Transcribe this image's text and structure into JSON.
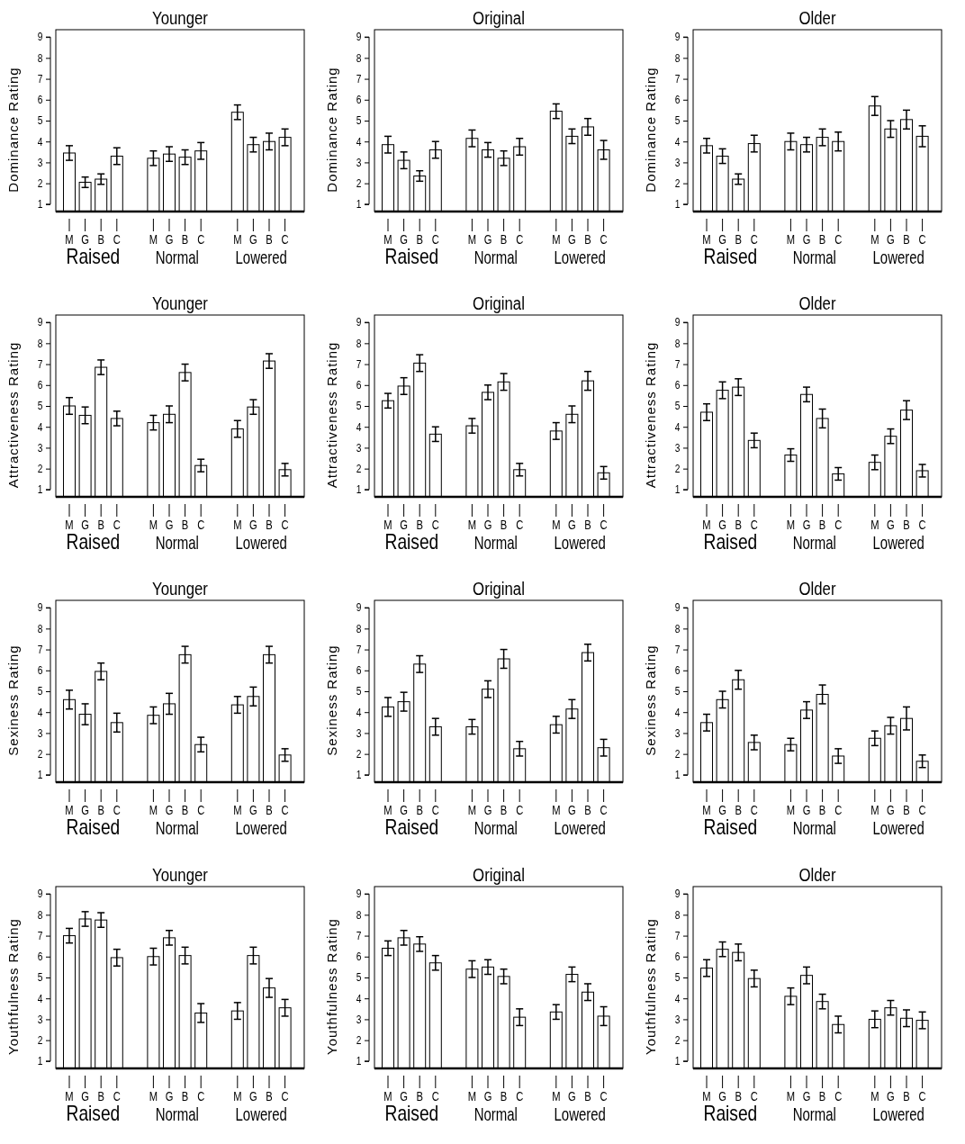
{
  "chart_data": [
    {
      "type": "bar",
      "title": "Younger",
      "ylabel": "Dominance Rating",
      "categories": [
        "M",
        "G",
        "B",
        "C",
        "M",
        "G",
        "B",
        "C",
        "M",
        "G",
        "B",
        "C"
      ],
      "annotations": [
        "Raised",
        "Normal",
        "Lowered"
      ],
      "color": "#ffffff",
      "ylim": [
        0.65,
        9.35
      ],
      "yticks": [
        1,
        2,
        3,
        4,
        5,
        6,
        7,
        8,
        9
      ],
      "values": [
        3.45,
        2.05,
        2.2,
        3.3,
        3.2,
        3.4,
        3.25,
        3.55,
        5.4,
        3.85,
        4.0,
        4.2
      ],
      "errors": [
        0.35,
        0.25,
        0.25,
        0.4,
        0.35,
        0.35,
        0.35,
        0.4,
        0.35,
        0.35,
        0.4,
        0.4
      ]
    },
    {
      "type": "bar",
      "title": "Original",
      "ylabel": "Dominance Rating",
      "categories": [
        "M",
        "G",
        "B",
        "C",
        "M",
        "G",
        "B",
        "C",
        "M",
        "G",
        "B",
        "C"
      ],
      "annotations": [
        "Raised",
        "Normal",
        "Lowered"
      ],
      "color": "#ffffff",
      "ylim": [
        0.65,
        9.35
      ],
      "yticks": [
        1,
        2,
        3,
        4,
        5,
        6,
        7,
        8,
        9
      ],
      "values": [
        3.85,
        3.1,
        2.35,
        3.6,
        4.15,
        3.6,
        3.2,
        3.75,
        5.45,
        4.25,
        4.7,
        3.6
      ],
      "errors": [
        0.4,
        0.4,
        0.25,
        0.4,
        0.4,
        0.35,
        0.35,
        0.4,
        0.35,
        0.35,
        0.4,
        0.45
      ]
    },
    {
      "type": "bar",
      "title": "Older",
      "ylabel": "Dominance Rating",
      "categories": [
        "M",
        "G",
        "B",
        "C",
        "M",
        "G",
        "B",
        "C",
        "M",
        "G",
        "B",
        "C"
      ],
      "annotations": [
        "Raised",
        "Normal",
        "Lowered"
      ],
      "color": "#ffffff",
      "ylim": [
        0.65,
        9.35
      ],
      "yticks": [
        1,
        2,
        3,
        4,
        5,
        6,
        7,
        8,
        9
      ],
      "values": [
        3.8,
        3.3,
        2.2,
        3.9,
        4.0,
        3.85,
        4.2,
        4.0,
        5.7,
        4.6,
        5.05,
        4.25
      ],
      "errors": [
        0.35,
        0.35,
        0.25,
        0.4,
        0.4,
        0.35,
        0.4,
        0.45,
        0.45,
        0.4,
        0.45,
        0.5
      ]
    },
    {
      "type": "bar",
      "title": "Younger",
      "ylabel": "Attractiveness Rating",
      "categories": [
        "M",
        "G",
        "B",
        "C",
        "M",
        "G",
        "B",
        "C",
        "M",
        "G",
        "B",
        "C"
      ],
      "annotations": [
        "Raised",
        "Normal",
        "Lowered"
      ],
      "color": "#ffffff",
      "ylim": [
        0.65,
        9.35
      ],
      "yticks": [
        1,
        2,
        3,
        4,
        5,
        6,
        7,
        8,
        9
      ],
      "values": [
        5.0,
        4.55,
        6.85,
        4.4,
        4.2,
        4.6,
        6.6,
        2.15,
        3.9,
        4.95,
        7.15,
        1.95
      ],
      "errors": [
        0.4,
        0.4,
        0.35,
        0.35,
        0.35,
        0.4,
        0.4,
        0.3,
        0.4,
        0.35,
        0.35,
        0.3
      ]
    },
    {
      "type": "bar",
      "title": "Original",
      "ylabel": "Attractiveness Rating",
      "categories": [
        "M",
        "G",
        "B",
        "C",
        "M",
        "G",
        "B",
        "C",
        "M",
        "G",
        "B",
        "C"
      ],
      "annotations": [
        "Raised",
        "Normal",
        "Lowered"
      ],
      "color": "#ffffff",
      "ylim": [
        0.65,
        9.35
      ],
      "yticks": [
        1,
        2,
        3,
        4,
        5,
        6,
        7,
        8,
        9
      ],
      "values": [
        5.25,
        5.95,
        7.05,
        3.65,
        4.05,
        5.65,
        6.15,
        1.95,
        3.8,
        4.6,
        6.2,
        1.8
      ],
      "errors": [
        0.35,
        0.4,
        0.4,
        0.35,
        0.35,
        0.35,
        0.4,
        0.3,
        0.4,
        0.4,
        0.45,
        0.3
      ]
    },
    {
      "type": "bar",
      "title": "Older",
      "ylabel": "Attractiveness Rating",
      "categories": [
        "M",
        "G",
        "B",
        "C",
        "M",
        "G",
        "B",
        "C",
        "M",
        "G",
        "B",
        "C"
      ],
      "annotations": [
        "Raised",
        "Normal",
        "Lowered"
      ],
      "color": "#ffffff",
      "ylim": [
        0.65,
        9.35
      ],
      "yticks": [
        1,
        2,
        3,
        4,
        5,
        6,
        7,
        8,
        9
      ],
      "values": [
        4.7,
        5.75,
        5.9,
        3.35,
        2.65,
        5.55,
        4.4,
        1.75,
        2.3,
        3.55,
        4.8,
        1.9
      ],
      "errors": [
        0.4,
        0.4,
        0.4,
        0.35,
        0.3,
        0.35,
        0.45,
        0.3,
        0.35,
        0.35,
        0.45,
        0.3
      ]
    },
    {
      "type": "bar",
      "title": "Younger",
      "ylabel": "Sexiness Rating",
      "categories": [
        "M",
        "G",
        "B",
        "C",
        "M",
        "G",
        "B",
        "C",
        "M",
        "G",
        "B",
        "C"
      ],
      "annotations": [
        "Raised",
        "Normal",
        "Lowered"
      ],
      "color": "#ffffff",
      "ylim": [
        0.65,
        9.35
      ],
      "yticks": [
        1,
        2,
        3,
        4,
        5,
        6,
        7,
        8,
        9
      ],
      "values": [
        4.6,
        3.9,
        5.95,
        3.5,
        3.85,
        4.4,
        6.75,
        2.45,
        4.35,
        4.75,
        6.75,
        1.95
      ],
      "errors": [
        0.45,
        0.5,
        0.4,
        0.45,
        0.4,
        0.5,
        0.4,
        0.35,
        0.4,
        0.45,
        0.4,
        0.3
      ]
    },
    {
      "type": "bar",
      "title": "Original",
      "ylabel": "Sexiness Rating",
      "categories": [
        "M",
        "G",
        "B",
        "C",
        "M",
        "G",
        "B",
        "C",
        "M",
        "G",
        "B",
        "C"
      ],
      "annotations": [
        "Raised",
        "Normal",
        "Lowered"
      ],
      "color": "#ffffff",
      "ylim": [
        0.65,
        9.35
      ],
      "yticks": [
        1,
        2,
        3,
        4,
        5,
        6,
        7,
        8,
        9
      ],
      "values": [
        4.25,
        4.5,
        6.3,
        3.3,
        3.3,
        5.1,
        6.55,
        2.25,
        3.4,
        4.15,
        6.85,
        2.3
      ],
      "errors": [
        0.45,
        0.45,
        0.4,
        0.4,
        0.35,
        0.4,
        0.45,
        0.35,
        0.4,
        0.45,
        0.4,
        0.4
      ]
    },
    {
      "type": "bar",
      "title": "Older",
      "ylabel": "Sexiness Rating",
      "categories": [
        "M",
        "G",
        "B",
        "C",
        "M",
        "G",
        "B",
        "C",
        "M",
        "G",
        "B",
        "C"
      ],
      "annotations": [
        "Raised",
        "Normal",
        "Lowered"
      ],
      "color": "#ffffff",
      "ylim": [
        0.65,
        9.35
      ],
      "yticks": [
        1,
        2,
        3,
        4,
        5,
        6,
        7,
        8,
        9
      ],
      "values": [
        3.5,
        4.6,
        5.55,
        2.55,
        2.45,
        4.1,
        4.85,
        1.9,
        2.75,
        3.35,
        3.7,
        1.65
      ],
      "errors": [
        0.4,
        0.4,
        0.45,
        0.35,
        0.3,
        0.4,
        0.45,
        0.35,
        0.35,
        0.4,
        0.55,
        0.3
      ]
    },
    {
      "type": "bar",
      "title": "Younger",
      "ylabel": "Youthfulness Rating",
      "categories": [
        "M",
        "G",
        "B",
        "C",
        "M",
        "G",
        "B",
        "C",
        "M",
        "G",
        "B",
        "C"
      ],
      "annotations": [
        "Raised",
        "Normal",
        "Lowered"
      ],
      "color": "#ffffff",
      "ylim": [
        0.65,
        9.35
      ],
      "yticks": [
        1,
        2,
        3,
        4,
        5,
        6,
        7,
        8,
        9
      ],
      "values": [
        7.0,
        7.8,
        7.75,
        5.95,
        6.0,
        6.9,
        6.05,
        3.3,
        3.4,
        6.05,
        4.5,
        3.55
      ],
      "errors": [
        0.35,
        0.35,
        0.35,
        0.4,
        0.4,
        0.35,
        0.4,
        0.45,
        0.4,
        0.4,
        0.45,
        0.4
      ]
    },
    {
      "type": "bar",
      "title": "Original",
      "ylabel": "Youthfulness Rating",
      "categories": [
        "M",
        "G",
        "B",
        "C",
        "M",
        "G",
        "B",
        "C",
        "M",
        "G",
        "B",
        "C"
      ],
      "annotations": [
        "Raised",
        "Normal",
        "Lowered"
      ],
      "color": "#ffffff",
      "ylim": [
        0.65,
        9.35
      ],
      "yticks": [
        1,
        2,
        3,
        4,
        5,
        6,
        7,
        8,
        9
      ],
      "values": [
        6.4,
        6.9,
        6.6,
        5.7,
        5.4,
        5.5,
        5.05,
        3.1,
        3.35,
        5.15,
        4.3,
        3.15
      ],
      "errors": [
        0.35,
        0.35,
        0.35,
        0.35,
        0.4,
        0.35,
        0.35,
        0.4,
        0.35,
        0.35,
        0.4,
        0.45
      ]
    },
    {
      "type": "bar",
      "title": "Older",
      "ylabel": "Youthfulness Rating",
      "categories": [
        "M",
        "G",
        "B",
        "C",
        "M",
        "G",
        "B",
        "C",
        "M",
        "G",
        "B",
        "C"
      ],
      "annotations": [
        "Raised",
        "Normal",
        "Lowered"
      ],
      "color": "#ffffff",
      "ylim": [
        0.65,
        9.35
      ],
      "yticks": [
        1,
        2,
        3,
        4,
        5,
        6,
        7,
        8,
        9
      ],
      "values": [
        5.45,
        6.35,
        6.2,
        4.95,
        4.1,
        5.1,
        3.85,
        2.75,
        3.0,
        3.55,
        3.05,
        2.95
      ],
      "errors": [
        0.4,
        0.35,
        0.4,
        0.4,
        0.4,
        0.4,
        0.35,
        0.4,
        0.4,
        0.35,
        0.4,
        0.4
      ]
    }
  ]
}
